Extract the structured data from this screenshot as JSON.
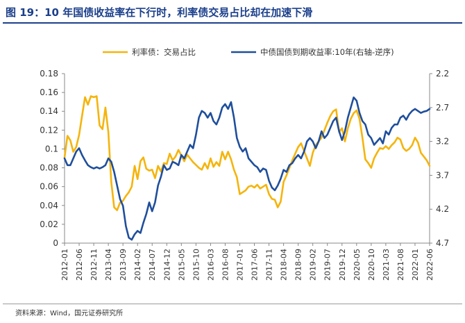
{
  "header": {
    "title": "图 19：10 年国债收益率在下行时，利率债交易占比却在加速下滑"
  },
  "footer": {
    "source": "资料来源：Wind，国元证券研究所"
  },
  "colors": {
    "title": "#1b3f8b",
    "series_yellow": "#f5b40c",
    "series_blue": "#1f4e9c",
    "axis": "#888888"
  },
  "chart_data": {
    "type": "line",
    "title": "",
    "xlabel": "",
    "ylabel": "",
    "x_ticks": [
      "2012-01",
      "2012-06",
      "2012-11",
      "2013-04",
      "2013-09",
      "2014-02",
      "2014-07",
      "2014-12",
      "2015-05",
      "2015-10",
      "2016-03",
      "2016-08",
      "2017-01",
      "2017-06",
      "2017-11",
      "2018-04",
      "2018-09",
      "2019-02",
      "2019-07",
      "2019-12",
      "2020-05",
      "2020-10",
      "2021-03",
      "2021-08",
      "2022-01",
      "2022-06"
    ],
    "x_range": [
      "2012-01",
      "2022-06"
    ],
    "y_left": {
      "ylim": [
        0,
        0.18
      ],
      "ticks": [
        "0",
        "0.02",
        "0.04",
        "0.06",
        "0.08",
        "0.1",
        "0.12",
        "0.14",
        "0.16",
        "0.18"
      ]
    },
    "y_right": {
      "ylim": [
        2.2,
        4.7
      ],
      "inverted": true,
      "ticks": [
        "2.2",
        "2.7",
        "3.2",
        "3.7",
        "4.2",
        "4.7"
      ]
    },
    "series": [
      {
        "name": "利率债：交易占比",
        "axis": "left",
        "color": "#f5b40c",
        "points": [
          [
            "2012-01",
            0.091
          ],
          [
            "2012-02",
            0.114
          ],
          [
            "2012-03",
            0.109
          ],
          [
            "2012-04",
            0.097
          ],
          [
            "2012-05",
            0.102
          ],
          [
            "2012-06",
            0.115
          ],
          [
            "2012-07",
            0.135
          ],
          [
            "2012-08",
            0.155
          ],
          [
            "2012-09",
            0.147
          ],
          [
            "2012-10",
            0.156
          ],
          [
            "2012-11",
            0.155
          ],
          [
            "2012-12",
            0.156
          ],
          [
            "2013-01",
            0.125
          ],
          [
            "2013-02",
            0.121
          ],
          [
            "2013-03",
            0.144
          ],
          [
            "2013-04",
            0.118
          ],
          [
            "2013-05",
            0.065
          ],
          [
            "2013-06",
            0.038
          ],
          [
            "2013-07",
            0.035
          ],
          [
            "2013-08",
            0.043
          ],
          [
            "2013-09",
            0.045
          ],
          [
            "2013-10",
            0.05
          ],
          [
            "2013-11",
            0.054
          ],
          [
            "2013-12",
            0.06
          ],
          [
            "2014-01",
            0.082
          ],
          [
            "2014-02",
            0.068
          ],
          [
            "2014-03",
            0.087
          ],
          [
            "2014-04",
            0.091
          ],
          [
            "2014-05",
            0.079
          ],
          [
            "2014-06",
            0.077
          ],
          [
            "2014-07",
            0.078
          ],
          [
            "2014-08",
            0.069
          ],
          [
            "2014-09",
            0.082
          ],
          [
            "2014-10",
            0.076
          ],
          [
            "2014-11",
            0.085
          ],
          [
            "2014-12",
            0.084
          ],
          [
            "2015-01",
            0.095
          ],
          [
            "2015-02",
            0.088
          ],
          [
            "2015-03",
            0.092
          ],
          [
            "2015-04",
            0.099
          ],
          [
            "2015-05",
            0.093
          ],
          [
            "2015-06",
            0.087
          ],
          [
            "2015-07",
            0.094
          ],
          [
            "2015-08",
            0.09
          ],
          [
            "2015-09",
            0.086
          ],
          [
            "2015-10",
            0.083
          ],
          [
            "2015-11",
            0.08
          ],
          [
            "2015-12",
            0.078
          ],
          [
            "2016-01",
            0.085
          ],
          [
            "2016-02",
            0.079
          ],
          [
            "2016-03",
            0.09
          ],
          [
            "2016-04",
            0.081
          ],
          [
            "2016-05",
            0.086
          ],
          [
            "2016-06",
            0.082
          ],
          [
            "2016-07",
            0.097
          ],
          [
            "2016-08",
            0.089
          ],
          [
            "2016-09",
            0.097
          ],
          [
            "2016-10",
            0.089
          ],
          [
            "2016-11",
            0.078
          ],
          [
            "2016-12",
            0.07
          ],
          [
            "2017-01",
            0.052
          ],
          [
            "2017-02",
            0.054
          ],
          [
            "2017-03",
            0.056
          ],
          [
            "2017-04",
            0.06
          ],
          [
            "2017-05",
            0.061
          ],
          [
            "2017-06",
            0.059
          ],
          [
            "2017-07",
            0.062
          ],
          [
            "2017-08",
            0.058
          ],
          [
            "2017-09",
            0.06
          ],
          [
            "2017-10",
            0.062
          ],
          [
            "2017-11",
            0.052
          ],
          [
            "2017-12",
            0.047
          ],
          [
            "2018-01",
            0.046
          ],
          [
            "2018-02",
            0.038
          ],
          [
            "2018-03",
            0.044
          ],
          [
            "2018-04",
            0.065
          ],
          [
            "2018-05",
            0.072
          ],
          [
            "2018-06",
            0.08
          ],
          [
            "2018-07",
            0.088
          ],
          [
            "2018-08",
            0.095
          ],
          [
            "2018-09",
            0.102
          ],
          [
            "2018-10",
            0.106
          ],
          [
            "2018-11",
            0.098
          ],
          [
            "2018-12",
            0.09
          ],
          [
            "2019-01",
            0.082
          ],
          [
            "2019-02",
            0.096
          ],
          [
            "2019-03",
            0.104
          ],
          [
            "2019-04",
            0.108
          ],
          [
            "2019-05",
            0.112
          ],
          [
            "2019-06",
            0.12
          ],
          [
            "2019-07",
            0.128
          ],
          [
            "2019-08",
            0.135
          ],
          [
            "2019-09",
            0.14
          ],
          [
            "2019-10",
            0.142
          ],
          [
            "2019-11",
            0.118
          ],
          [
            "2019-12",
            0.122
          ],
          [
            "2020-01",
            0.108
          ],
          [
            "2020-02",
            0.122
          ],
          [
            "2020-03",
            0.132
          ],
          [
            "2020-04",
            0.138
          ],
          [
            "2020-05",
            0.141
          ],
          [
            "2020-06",
            0.132
          ],
          [
            "2020-07",
            0.112
          ],
          [
            "2020-08",
            0.089
          ],
          [
            "2020-09",
            0.085
          ],
          [
            "2020-10",
            0.08
          ],
          [
            "2020-11",
            0.09
          ],
          [
            "2020-12",
            0.096
          ],
          [
            "2021-01",
            0.101
          ],
          [
            "2021-02",
            0.1
          ],
          [
            "2021-03",
            0.103
          ],
          [
            "2021-04",
            0.1
          ],
          [
            "2021-05",
            0.104
          ],
          [
            "2021-06",
            0.107
          ],
          [
            "2021-07",
            0.112
          ],
          [
            "2021-08",
            0.11
          ],
          [
            "2021-09",
            0.101
          ],
          [
            "2021-10",
            0.098
          ],
          [
            "2021-11",
            0.1
          ],
          [
            "2021-12",
            0.104
          ],
          [
            "2022-01",
            0.112
          ],
          [
            "2022-02",
            0.107
          ],
          [
            "2022-03",
            0.096
          ],
          [
            "2022-04",
            0.092
          ],
          [
            "2022-05",
            0.088
          ],
          [
            "2022-06",
            0.082
          ]
        ]
      },
      {
        "name": "中债国债到期收益率:10年(右轴-逆序)",
        "axis": "right",
        "color": "#1f4e9c",
        "points": [
          [
            "2012-01",
            3.45
          ],
          [
            "2012-02",
            3.55
          ],
          [
            "2012-03",
            3.55
          ],
          [
            "2012-04",
            3.45
          ],
          [
            "2012-05",
            3.35
          ],
          [
            "2012-06",
            3.3
          ],
          [
            "2012-07",
            3.4
          ],
          [
            "2012-08",
            3.48
          ],
          [
            "2012-09",
            3.55
          ],
          [
            "2012-10",
            3.58
          ],
          [
            "2012-11",
            3.6
          ],
          [
            "2012-12",
            3.58
          ],
          [
            "2013-01",
            3.6
          ],
          [
            "2013-02",
            3.58
          ],
          [
            "2013-03",
            3.55
          ],
          [
            "2013-04",
            3.45
          ],
          [
            "2013-05",
            3.5
          ],
          [
            "2013-06",
            3.65
          ],
          [
            "2013-07",
            3.85
          ],
          [
            "2013-08",
            4.05
          ],
          [
            "2013-09",
            4.15
          ],
          [
            "2013-10",
            4.45
          ],
          [
            "2013-11",
            4.62
          ],
          [
            "2013-12",
            4.65
          ],
          [
            "2014-01",
            4.57
          ],
          [
            "2014-02",
            4.52
          ],
          [
            "2014-03",
            4.55
          ],
          [
            "2014-04",
            4.4
          ],
          [
            "2014-05",
            4.27
          ],
          [
            "2014-06",
            4.1
          ],
          [
            "2014-07",
            4.23
          ],
          [
            "2014-08",
            4.1
          ],
          [
            "2014-09",
            3.85
          ],
          [
            "2014-10",
            3.72
          ],
          [
            "2014-11",
            3.55
          ],
          [
            "2014-12",
            3.62
          ],
          [
            "2015-01",
            3.6
          ],
          [
            "2015-02",
            3.5
          ],
          [
            "2015-03",
            3.52
          ],
          [
            "2015-04",
            3.55
          ],
          [
            "2015-05",
            3.4
          ],
          [
            "2015-06",
            3.45
          ],
          [
            "2015-07",
            3.35
          ],
          [
            "2015-08",
            3.25
          ],
          [
            "2015-09",
            3.3
          ],
          [
            "2015-10",
            3.1
          ],
          [
            "2015-11",
            2.85
          ],
          [
            "2015-12",
            2.75
          ],
          [
            "2016-01",
            2.78
          ],
          [
            "2016-02",
            2.85
          ],
          [
            "2016-03",
            2.78
          ],
          [
            "2016-04",
            2.9
          ],
          [
            "2016-05",
            2.95
          ],
          [
            "2016-06",
            2.85
          ],
          [
            "2016-07",
            2.7
          ],
          [
            "2016-08",
            2.65
          ],
          [
            "2016-09",
            2.72
          ],
          [
            "2016-10",
            2.62
          ],
          [
            "2016-11",
            2.85
          ],
          [
            "2016-12",
            3.15
          ],
          [
            "2017-01",
            3.28
          ],
          [
            "2017-02",
            3.35
          ],
          [
            "2017-03",
            3.3
          ],
          [
            "2017-04",
            3.45
          ],
          [
            "2017-05",
            3.5
          ],
          [
            "2017-06",
            3.55
          ],
          [
            "2017-07",
            3.58
          ],
          [
            "2017-08",
            3.65
          ],
          [
            "2017-09",
            3.6
          ],
          [
            "2017-10",
            3.62
          ],
          [
            "2017-11",
            3.78
          ],
          [
            "2017-12",
            3.88
          ],
          [
            "2018-01",
            3.92
          ],
          [
            "2018-02",
            3.85
          ],
          [
            "2018-03",
            3.75
          ],
          [
            "2018-04",
            3.62
          ],
          [
            "2018-05",
            3.65
          ],
          [
            "2018-06",
            3.55
          ],
          [
            "2018-07",
            3.52
          ],
          [
            "2018-08",
            3.45
          ],
          [
            "2018-09",
            3.4
          ],
          [
            "2018-10",
            3.45
          ],
          [
            "2018-11",
            3.35
          ],
          [
            "2018-12",
            3.2
          ],
          [
            "2019-01",
            3.15
          ],
          [
            "2019-02",
            3.2
          ],
          [
            "2019-03",
            3.3
          ],
          [
            "2019-04",
            3.2
          ],
          [
            "2019-05",
            3.05
          ],
          [
            "2019-06",
            3.15
          ],
          [
            "2019-07",
            3.1
          ],
          [
            "2019-08",
            3.0
          ],
          [
            "2019-09",
            2.9
          ],
          [
            "2019-10",
            2.85
          ],
          [
            "2019-11",
            3.05
          ],
          [
            "2019-12",
            3.18
          ],
          [
            "2020-01",
            3.05
          ],
          [
            "2020-02",
            2.85
          ],
          [
            "2020-03",
            2.7
          ],
          [
            "2020-04",
            2.55
          ],
          [
            "2020-05",
            2.6
          ],
          [
            "2020-06",
            2.78
          ],
          [
            "2020-07",
            2.9
          ],
          [
            "2020-08",
            2.95
          ],
          [
            "2020-09",
            3.1
          ],
          [
            "2020-10",
            3.15
          ],
          [
            "2020-11",
            3.25
          ],
          [
            "2020-12",
            3.2
          ],
          [
            "2021-01",
            3.15
          ],
          [
            "2021-02",
            3.23
          ],
          [
            "2021-03",
            3.05
          ],
          [
            "2021-04",
            3.1
          ],
          [
            "2021-05",
            3.0
          ],
          [
            "2021-06",
            2.95
          ],
          [
            "2021-07",
            2.95
          ],
          [
            "2021-08",
            2.85
          ],
          [
            "2021-09",
            2.82
          ],
          [
            "2021-10",
            2.88
          ],
          [
            "2021-11",
            2.8
          ],
          [
            "2021-12",
            2.75
          ],
          [
            "2022-01",
            2.72
          ],
          [
            "2022-02",
            2.75
          ],
          [
            "2022-03",
            2.78
          ],
          [
            "2022-04",
            2.76
          ],
          [
            "2022-05",
            2.75
          ],
          [
            "2022-06",
            2.72
          ]
        ]
      }
    ]
  }
}
